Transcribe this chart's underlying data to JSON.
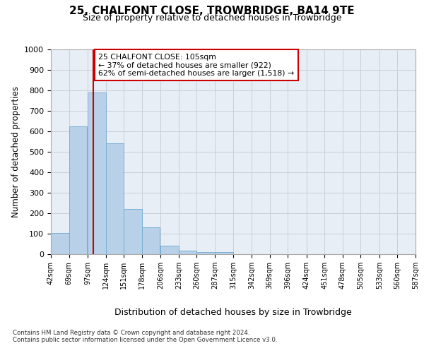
{
  "title": "25, CHALFONT CLOSE, TROWBRIDGE, BA14 9TE",
  "subtitle": "Size of property relative to detached houses in Trowbridge",
  "xlabel": "Distribution of detached houses by size in Trowbridge",
  "ylabel": "Number of detached properties",
  "property_size": 105,
  "property_label": "25 CHALFONT CLOSE: 105sqm",
  "annotation_line1": "← 37% of detached houses are smaller (922)",
  "annotation_line2": "62% of semi-detached houses are larger (1,518) →",
  "footnote1": "Contains HM Land Registry data © Crown copyright and database right 2024.",
  "footnote2": "Contains public sector information licensed under the Open Government Licence v3.0.",
  "bins": [
    42,
    69,
    97,
    124,
    151,
    178,
    206,
    233,
    260,
    287,
    315,
    342,
    369,
    396,
    424,
    451,
    478,
    505,
    533,
    560,
    587
  ],
  "counts": [
    103,
    623,
    790,
    540,
    222,
    132,
    42,
    17,
    10,
    10,
    0,
    0,
    0,
    0,
    0,
    0,
    0,
    0,
    0,
    0
  ],
  "bar_color": "#b8d0e8",
  "bar_edge_color": "#7bafd4",
  "vline_color": "#cc0000",
  "grid_color": "#c8d0dc",
  "background_color": "#e8eef5",
  "annotation_box_color": "#ffffff",
  "annotation_box_edge": "#cc0000",
  "ylim": [
    0,
    1000
  ],
  "yticks": [
    0,
    100,
    200,
    300,
    400,
    500,
    600,
    700,
    800,
    900,
    1000
  ]
}
